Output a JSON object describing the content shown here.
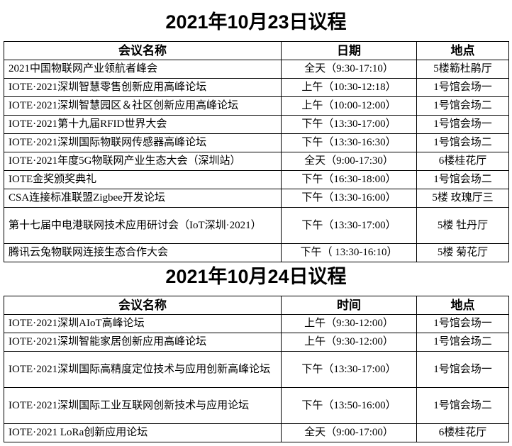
{
  "day1": {
    "title": "2021年10月23日议程",
    "headers": [
      "会议名称",
      "日期",
      "地点"
    ],
    "rows": [
      {
        "name": "2021中国物联网产业领航者峰会",
        "time": "全天（9:30-17:10）",
        "place": "5楼簕杜鹃厅"
      },
      {
        "name": "IOTE·2021深圳智慧零售创新应用高峰论坛",
        "time": "上午（10:30-12:18）",
        "place": "1号馆会场一"
      },
      {
        "name": "IOTE·2021深圳智慧园区＆社区创新应用高峰论坛",
        "time": "上午（10:00-12:00）",
        "place": "1号馆会场二"
      },
      {
        "name": "IOTE·2021第十九届RFID世界大会",
        "time": "下午（13:30-17:00）",
        "place": "1号馆会场一"
      },
      {
        "name": "IOTE·2021深圳国际物联网传感器高峰论坛",
        "time": "下午（13:30-16:30）",
        "place": "1号馆会场二"
      },
      {
        "name": "IOTE·2021年度5G物联网产业生态大会（深圳站）",
        "time": "全天（9:00-17:30）",
        "place": "6楼桂花厅"
      },
      {
        "name": "IOTE金奖颁奖典礼",
        "time": "下午（16:30-18:00）",
        "place": "1号馆会场二"
      },
      {
        "name": "CSA连接标准联盟Zigbee开发论坛",
        "time": "下午（13:30-16:00）",
        "place": "5楼 玫瑰厅三"
      },
      {
        "name": "第十七届中电港联网技术应用研讨会（IoT深圳·2021）",
        "time": "下午（13:30-17:00）",
        "place": "5楼 牡丹厅"
      },
      {
        "name": "腾讯云兔物联网连接生态合作大会",
        "time": "下午（ 13:30-16:10）",
        "place": "5楼 菊花厅"
      }
    ]
  },
  "day2": {
    "title": "2021年10月24日议程",
    "headers": [
      "会议名称",
      "时间",
      "地点"
    ],
    "rows": [
      {
        "name": "IOTE·2021深圳AIoT高峰论坛",
        "time": "上午（9:30-12:00）",
        "place": "1号馆会场一"
      },
      {
        "name": "IOTE·2021深圳智能家居创新应用高峰论坛",
        "time": "上午（9:30-12:00）",
        "place": "1号馆会场二"
      },
      {
        "name": "IOTE·2021深圳国际高精度定位技术与应用创新高峰论坛",
        "time": "下午（13:30-17:00）",
        "place": "1号馆会场一"
      },
      {
        "name": "IOTE·2021深圳国际工业互联网创新技术与应用论坛",
        "time": "下午（13:50-16:00）",
        "place": "1号馆会场二"
      },
      {
        "name": "IOTE·2021 LoRa创新应用论坛",
        "time": "全天（9:00-17:00）",
        "place": "6楼桂花厅"
      }
    ]
  }
}
